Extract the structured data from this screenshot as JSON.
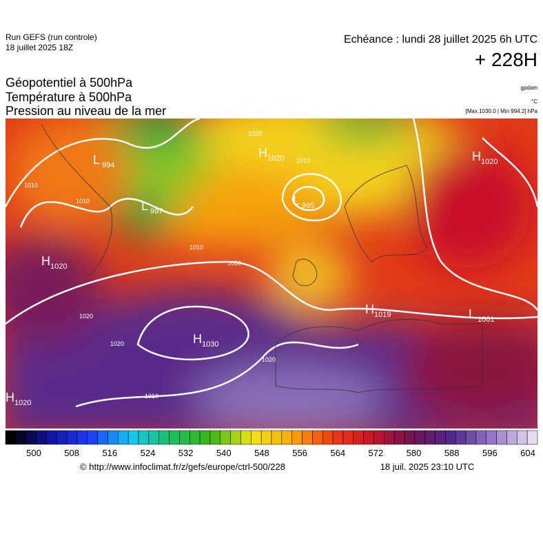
{
  "header": {
    "run": "Run GEFS (run controle)",
    "run_date": "18 juillet 2025 18Z",
    "echeance": "Echéance : lundi 28 juillet 2025 6h UTC",
    "offset": "+ 228H"
  },
  "legend": {
    "lines": [
      "Géopotentiel à 500hPa",
      "Température à 500hPa",
      "Pression au niveau de la mer"
    ],
    "units": [
      "gpdam",
      "°C",
      "[Max 1030.0 | Min 994.2] hPa"
    ]
  },
  "centers": [
    {
      "letter": "L",
      "pressure": 994
    },
    {
      "letter": "L",
      "pressure": 997
    },
    {
      "letter": "H",
      "pressure": 1020
    },
    {
      "letter": "L",
      "pressure": 995
    },
    {
      "letter": "H",
      "pressure": 1020
    },
    {
      "letter": "H",
      "pressure": 1020
    },
    {
      "letter": "H",
      "pressure": 1030
    },
    {
      "letter": "H",
      "pressure": 1019
    },
    {
      "letter": "L",
      "pressure": 1001
    },
    {
      "letter": "H",
      "pressure": 1020
    }
  ],
  "isobar_labels": [
    1010,
    1010,
    1020,
    1010,
    1010,
    1020,
    1020,
    1020,
    1020,
    1010
  ],
  "colorbar": {
    "ticks": [
      500,
      508,
      516,
      524,
      532,
      540,
      548,
      556,
      564,
      572,
      580,
      588,
      596,
      604
    ]
  },
  "footer": {
    "source": "© http://www.infoclimat.fr/z/gefs/europe/ctrl-500/228",
    "generated": "18 juil. 2025 23:10 UTC"
  }
}
